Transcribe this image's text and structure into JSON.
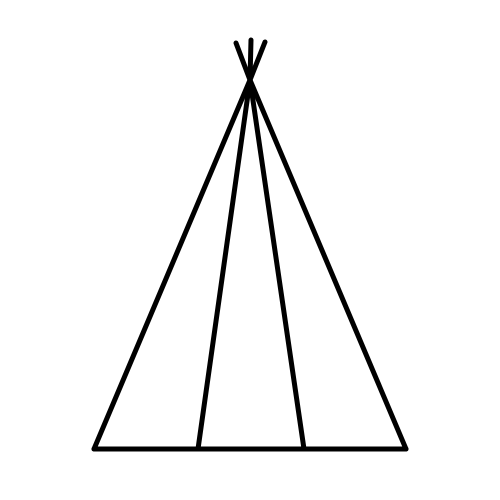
{
  "figure": {
    "icon": "teepee-icon",
    "background_color": "#ffffff",
    "stroke_color": "#000000"
  }
}
